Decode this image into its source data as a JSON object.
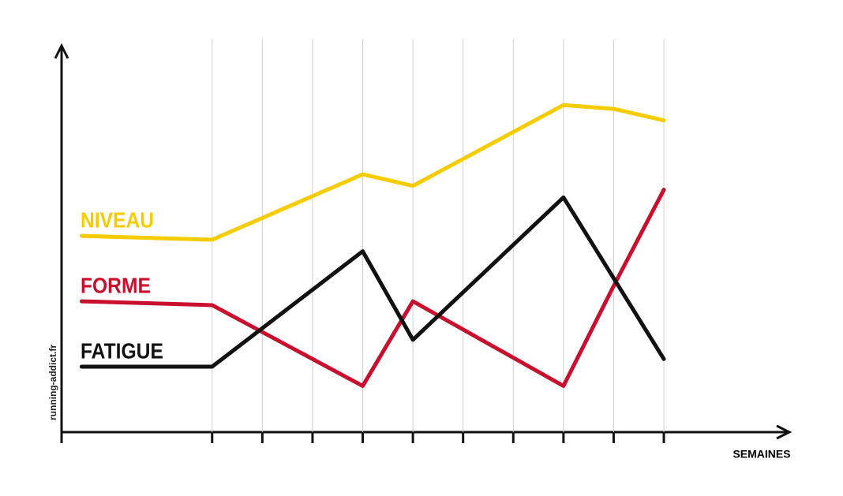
{
  "chart_data": {
    "type": "line",
    "x": [
      0.4,
      3,
      6,
      7,
      10,
      11,
      12
    ],
    "series": [
      {
        "name": "NIVEAU",
        "color": "#f5cc00",
        "values": [
          51,
          50,
          67,
          64,
          85,
          84,
          81
        ]
      },
      {
        "name": "FORME",
        "color": "#c8102e",
        "values": [
          34,
          33,
          12,
          34,
          12,
          38,
          63
        ]
      },
      {
        "name": "FATIGUE",
        "color": "#111111",
        "values": [
          17,
          17,
          47,
          24,
          61,
          40,
          19
        ]
      }
    ],
    "xlabel": "SEMAINES",
    "ylabel": "running-addict.fr",
    "xlim": [
      0,
      14.5
    ],
    "ylim": [
      0,
      100
    ],
    "xticks": [
      3,
      4,
      5,
      6,
      7,
      8,
      9,
      10,
      11,
      12
    ],
    "grid": true
  }
}
